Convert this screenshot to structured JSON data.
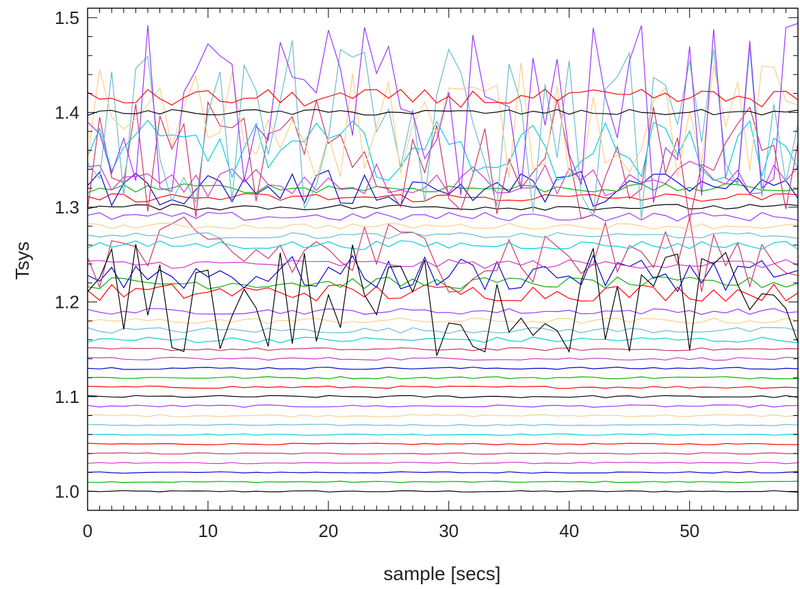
{
  "chart_data": {
    "type": "line",
    "title": "",
    "xlabel": "sample [secs]",
    "ylabel": "Tsys",
    "xlim": [
      0,
      59
    ],
    "ylim": [
      0.98,
      1.51
    ],
    "x_ticks": [
      0,
      10,
      20,
      30,
      40,
      50
    ],
    "x_tick_labels": [
      "0",
      "10",
      "20",
      "30",
      "40",
      "50"
    ],
    "y_ticks": [
      1.0,
      1.1,
      1.2,
      1.3,
      1.4,
      1.5
    ],
    "y_tick_labels": [
      "1.0",
      "1.1",
      "1.2",
      "1.3",
      "1.4",
      "1.5"
    ],
    "x_minor_step": 1,
    "y_minor_step": 0.02,
    "grid": false,
    "legend": "none",
    "n_samples": 60,
    "series_colors": [
      "#000000",
      "#0000cc",
      "#00b000",
      "#ff0000",
      "#cc3366",
      "#cc33cc",
      "#9933ff",
      "#ffcc88",
      "#66bbcc",
      "#00ccdd"
    ],
    "series": [
      {
        "base": 1.0,
        "amp": 0.0005,
        "color": "#000000"
      },
      {
        "base": 1.01,
        "amp": 0.0005,
        "color": "#00b000"
      },
      {
        "base": 1.02,
        "amp": 0.0005,
        "color": "#0000cc"
      },
      {
        "base": 1.03,
        "amp": 0.0005,
        "color": "#cc33cc"
      },
      {
        "base": 1.04,
        "amp": 0.0005,
        "color": "#cc3366"
      },
      {
        "base": 1.05,
        "amp": 0.0005,
        "color": "#ff0000"
      },
      {
        "base": 1.06,
        "amp": 0.0005,
        "color": "#00ccdd"
      },
      {
        "base": 1.07,
        "amp": 0.0005,
        "color": "#66bbcc"
      },
      {
        "base": 1.08,
        "amp": 0.0008,
        "color": "#ffcc88"
      },
      {
        "base": 1.09,
        "amp": 0.0008,
        "color": "#9933ff"
      },
      {
        "base": 1.1,
        "amp": 0.0008,
        "color": "#000000"
      },
      {
        "base": 1.11,
        "amp": 0.0008,
        "color": "#ff0000"
      },
      {
        "base": 1.12,
        "amp": 0.0008,
        "color": "#00b000"
      },
      {
        "base": 1.13,
        "amp": 0.0008,
        "color": "#0000cc"
      },
      {
        "base": 1.14,
        "amp": 0.001,
        "color": "#cc33cc"
      },
      {
        "base": 1.15,
        "amp": 0.001,
        "color": "#cc3366"
      },
      {
        "base": 1.16,
        "amp": 0.002,
        "color": "#00ccdd"
      },
      {
        "base": 1.17,
        "amp": 0.002,
        "color": "#66bbcc"
      },
      {
        "base": 1.18,
        "amp": 0.002,
        "color": "#ffcc88"
      },
      {
        "base": 1.19,
        "amp": 0.002,
        "color": "#9933ff"
      },
      {
        "base": 1.21,
        "amp": 0.006,
        "color": "#ff0000"
      },
      {
        "base": 1.22,
        "amp": 0.004,
        "color": "#00b000"
      },
      {
        "base": 1.23,
        "amp": 0.012,
        "color": "#0000cc"
      },
      {
        "base": 1.24,
        "amp": 0.003,
        "color": "#cc33cc"
      },
      {
        "base": 1.25,
        "amp": 0.025,
        "color": "#cc3366"
      },
      {
        "base": 1.26,
        "amp": 0.003,
        "color": "#00ccdd"
      },
      {
        "base": 1.27,
        "amp": 0.002,
        "color": "#66bbcc"
      },
      {
        "base": 1.28,
        "amp": 0.002,
        "color": "#ffcc88"
      },
      {
        "base": 1.29,
        "amp": 0.003,
        "color": "#9933ff"
      },
      {
        "base": 1.3,
        "amp": 0.002,
        "color": "#000000"
      },
      {
        "base": 1.31,
        "amp": 0.003,
        "color": "#ff0000"
      },
      {
        "base": 1.32,
        "amp": 0.003,
        "color": "#00b000"
      },
      {
        "base": 1.32,
        "amp": 0.012,
        "color": "#0000cc"
      },
      {
        "base": 1.33,
        "amp": 0.012,
        "color": "#cc33cc"
      },
      {
        "base": 1.35,
        "amp": 0.04,
        "color": "#cc3366"
      },
      {
        "base": 1.36,
        "amp": 0.02,
        "color": "#00ccdd"
      },
      {
        "base": 1.38,
        "amp": 0.06,
        "color": "#66bbcc"
      },
      {
        "base": 1.39,
        "amp": 0.04,
        "color": "#ffcc88"
      },
      {
        "base": 1.4,
        "amp": 0.06,
        "color": "#9933ff"
      },
      {
        "base": 1.4,
        "amp": 0.002,
        "color": "#000000"
      },
      {
        "base": 1.415,
        "amp": 0.006,
        "color": "#ff0000"
      },
      {
        "base": 1.2,
        "amp": 0.04,
        "color": "#000000"
      }
    ]
  }
}
